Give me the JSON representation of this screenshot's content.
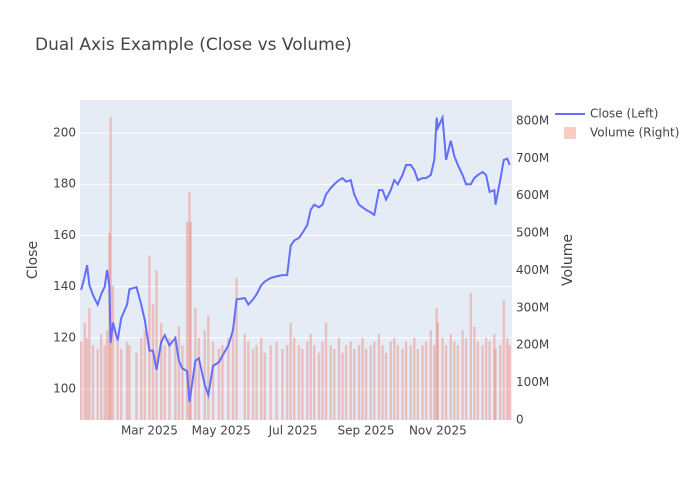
{
  "chart_data": {
    "type": "line",
    "title": "Dual Axis Example (Close vs Volume)",
    "y_label": "Close",
    "y2_label": "Volume",
    "grid": true,
    "xlim": [
      1,
      368
    ],
    "xticks": [
      {
        "value": 60,
        "label": "Mar 2025"
      },
      {
        "value": 121,
        "label": "May 2025"
      },
      {
        "value": 182,
        "label": "Jul 2025"
      },
      {
        "value": 244,
        "label": "Sep 2025"
      },
      {
        "value": 305,
        "label": "Nov 2025"
      }
    ],
    "ylim": [
      87.9,
      212.9
    ],
    "yticks": [
      100,
      120,
      140,
      160,
      180,
      200
    ],
    "y2lim": [
      0,
      856000000
    ],
    "y2ticks": [
      0,
      {
        "value": 100000000,
        "label": "100M"
      },
      {
        "value": 200000000,
        "label": "200M"
      },
      {
        "value": 300000000,
        "label": "300M"
      },
      {
        "value": 400000000,
        "label": "400M"
      },
      {
        "value": 500000000,
        "label": "500M"
      },
      {
        "value": 600000000,
        "label": "600M"
      },
      {
        "value": 700000000,
        "label": "700M"
      },
      {
        "value": 800000000,
        "label": "800M"
      }
    ],
    "x": [
      2,
      5,
      7,
      9,
      12,
      16,
      19,
      22,
      24,
      26,
      27,
      29,
      33,
      36,
      41,
      43,
      49,
      53,
      56,
      60,
      63,
      66,
      70,
      73,
      77,
      82,
      85,
      88,
      92,
      94,
      95,
      99,
      102,
      107,
      110,
      114,
      119,
      122,
      127,
      131,
      134,
      141,
      144,
      148,
      151,
      155,
      158,
      163,
      168,
      173,
      177,
      180,
      183,
      187,
      190,
      194,
      197,
      200,
      204,
      207,
      210,
      214,
      217,
      221,
      224,
      227,
      231,
      234,
      238,
      241,
      244,
      248,
      251,
      255,
      258,
      261,
      265,
      268,
      271,
      275,
      278,
      282,
      285,
      288,
      292,
      295,
      299,
      302,
      304,
      305,
      309,
      312,
      316,
      319,
      322,
      326,
      329,
      333,
      336,
      339,
      343,
      346,
      349,
      353,
      354,
      358,
      361,
      364,
      366
    ],
    "series": [
      {
        "name": "Close (Left)",
        "type": "line",
        "color": "#636efa",
        "values": [
          138.7,
          144,
          148.4,
          140.6,
          136.7,
          133,
          137,
          140,
          146.5,
          140,
          118,
          126,
          119,
          127.7,
          133,
          139,
          139.8,
          133,
          127,
          115,
          115,
          107.5,
          118.4,
          121,
          117,
          120,
          111,
          108,
          107,
          95,
          98,
          111,
          112,
          101.5,
          97.7,
          109,
          110.5,
          113,
          117,
          123,
          135,
          135.5,
          133,
          135,
          137,
          140.6,
          142,
          143.4,
          144,
          144.5,
          144.5,
          156,
          158,
          159,
          161,
          164,
          170,
          172,
          171,
          172,
          176,
          178.5,
          180,
          181.6,
          182.4,
          181,
          181.6,
          176,
          172,
          171,
          170,
          169,
          168,
          177.7,
          177.7,
          174,
          177.7,
          181.6,
          180,
          183.6,
          187.5,
          187.5,
          185.5,
          181.6,
          182.4,
          182.4,
          183.6,
          189.5,
          206,
          202,
          206,
          189.5,
          197,
          191,
          187.5,
          183.6,
          180,
          180,
          182.4,
          183.6,
          184.8,
          183.6,
          177,
          177.7,
          172,
          181.6,
          189.5,
          190,
          187.5
        ]
      },
      {
        "name": "Volume (Right)",
        "type": "bar",
        "axis": "y2",
        "color": "#ef553b",
        "opacity": 0.3,
        "values": [
          210000000.0,
          260000000.0,
          220000000.0,
          300000000.0,
          200000000.0,
          190000000.0,
          230000000.0,
          200000000.0,
          240000000.0,
          500000000.0,
          810000000.0,
          360000000.0,
          220000000.0,
          190000000.0,
          210000000.0,
          200000000.0,
          180000000.0,
          220000000.0,
          240000000.0,
          440000000.0,
          310000000.0,
          400000000.0,
          260000000.0,
          200000000.0,
          220000000.0,
          210000000.0,
          250000000.0,
          200000000.0,
          530000000.0,
          610000000.0,
          530000000.0,
          300000000.0,
          220000000.0,
          240000000.0,
          280000000.0,
          210000000.0,
          190000000.0,
          200000000.0,
          220000000.0,
          250000000.0,
          380000000.0,
          230000000.0,
          210000000.0,
          190000000.0,
          200000000.0,
          220000000.0,
          180000000.0,
          200000000.0,
          210000000.0,
          190000000.0,
          200000000.0,
          260000000.0,
          220000000.0,
          200000000.0,
          190000000.0,
          210000000.0,
          230000000.0,
          200000000.0,
          180000000.0,
          210000000.0,
          260000000.0,
          200000000.0,
          190000000.0,
          220000000.0,
          180000000.0,
          200000000.0,
          210000000.0,
          190000000.0,
          200000000.0,
          220000000.0,
          190000000.0,
          200000000.0,
          210000000.0,
          230000000.0,
          200000000.0,
          180000000.0,
          210000000.0,
          220000000.0,
          200000000.0,
          190000000.0,
          210000000.0,
          200000000.0,
          220000000.0,
          190000000.0,
          200000000.0,
          210000000.0,
          240000000.0,
          200000000.0,
          300000000.0,
          260000000.0,
          220000000.0,
          200000000.0,
          230000000.0,
          210000000.0,
          200000000.0,
          240000000.0,
          220000000.0,
          340000000.0,
          250000000.0,
          210000000.0,
          200000000.0,
          220000000.0,
          210000000.0,
          230000000.0,
          190000000.0,
          200000000.0,
          320000000.0,
          220000000.0,
          200000000.0
        ]
      }
    ]
  }
}
